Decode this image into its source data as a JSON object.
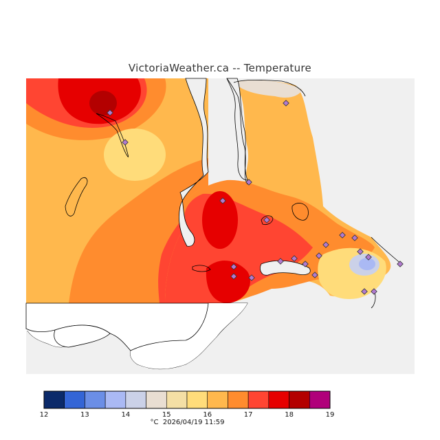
{
  "title": "VictoriaWeather.ca -- Temperature",
  "legend": {
    "unit": "°C",
    "timestamp": "2026/04/19 11:59",
    "ticks": [
      "12",
      "13",
      "14",
      "15",
      "16",
      "17",
      "18",
      "19"
    ],
    "bins": [
      {
        "from": 12.0,
        "to": 12.5,
        "color": "#0b2a6a"
      },
      {
        "from": 12.5,
        "to": 13.0,
        "color": "#3465d6"
      },
      {
        "from": 13.0,
        "to": 13.5,
        "color": "#6b8ee6"
      },
      {
        "from": 13.5,
        "to": 14.0,
        "color": "#aab9f4"
      },
      {
        "from": 14.0,
        "to": 14.5,
        "color": "#cbd1e8"
      },
      {
        "from": 14.5,
        "to": 15.0,
        "color": "#e9ded2"
      },
      {
        "from": 15.0,
        "to": 15.5,
        "color": "#f4dfa5"
      },
      {
        "from": 15.5,
        "to": 16.0,
        "color": "#ffdc7a"
      },
      {
        "from": 16.0,
        "to": 16.5,
        "color": "#ffb84d"
      },
      {
        "from": 16.5,
        "to": 17.0,
        "color": "#ff8c2e"
      },
      {
        "from": 17.0,
        "to": 17.5,
        "color": "#ff4532"
      },
      {
        "from": 17.5,
        "to": 18.0,
        "color": "#e60000"
      },
      {
        "from": 18.0,
        "to": 18.5,
        "color": "#b30000"
      },
      {
        "from": 18.5,
        "to": 19.0,
        "color": "#b0007a"
      }
    ]
  },
  "colors": {
    "water": "#f0f0f0",
    "land_outline": "#000000",
    "station_marker": "#b07ad0"
  },
  "stations_count": 22
}
